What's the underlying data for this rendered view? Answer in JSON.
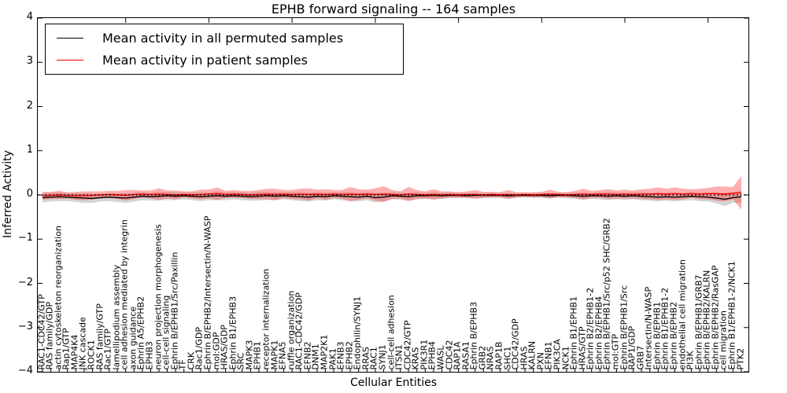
{
  "title": "EPHB forward signaling -- 164 samples",
  "legend": {
    "items": [
      {
        "label": "Mean activity in all permuted samples",
        "color": "#000000"
      },
      {
        "label": "Mean activity in patient samples",
        "color": "#ff0000"
      }
    ]
  },
  "chart_data": {
    "type": "line",
    "title": "EPHB forward signaling -- 164 samples",
    "xlabel": "Cellular Entities",
    "ylabel": "Inferred Activity",
    "ylim": [
      -4,
      4
    ],
    "yticks": [
      "4",
      "3",
      "2",
      "1",
      "0",
      "−1",
      "−2",
      "−3",
      "−4"
    ],
    "grid": false,
    "legend_position": "upper left",
    "zero_line": {
      "style": "dotted",
      "color": "#000000",
      "y": 0
    },
    "top_tick_every": 10,
    "categories": [
      "RAC1-CDC42/GTP",
      "RAS family/GDP",
      "actin cytoskeleton reorganization",
      "Rap1/GTP",
      "MAP4K4",
      "JNK cascade",
      "ROCK1",
      "RAS family/GTP",
      "Rac1/GTP",
      "lamellipodium assembly",
      "cell adhesion mediated by integrin",
      "axon guidance",
      "Ephrin A5/EPHB2",
      "EPHB3",
      "neuron projection morphogenesis",
      "cell-cell signaling",
      "Ephrin B/EPHB1/Src/Paxillin",
      "TF",
      "CRK",
      "Rac1/GDP",
      "Ephrin B/EPHB2/Intersectin/N-WASP",
      "mol:GDP",
      "HRAS/GDP",
      "Ephrin B1/EPHB3",
      "SRC",
      "MAPK3",
      "EPHB1",
      "receptor internalization",
      "MAPK1",
      "EFNA5",
      "ruffle organization",
      "RAC1-CDC42/GDP",
      "EFNB2",
      "DNM1",
      "MAP2K1",
      "PAK1",
      "EFNB3",
      "EPHB2",
      "Endophilin/SYNJ1",
      "RRAS",
      "RAC1",
      "SYNJ1",
      "cell-cell adhesion",
      "ITSN1",
      "CDC42/GTP",
      "KRAS",
      "PIK3R1",
      "EPHB4",
      "WASL",
      "CDC42",
      "RAP1A",
      "RASA1",
      "Ephrin B/EPHB3",
      "GRB2",
      "NRAS",
      "RAP1B",
      "SHC1",
      "CDC42/GDP",
      "HRAS",
      "KALRN",
      "PXN",
      "EFNB1",
      "PIK3CA",
      "NCK1",
      "Ephrin B1/EPHB1",
      "HRAS/GTP",
      "Ephrin B2/EPHB1-2",
      "Ephrin B2/EPHB4",
      "Ephrin B/EPHB1/Src/p52 SHC/GRB2",
      "mol:GTP",
      "Ephrin B/EPHB1/Src",
      "RAP1/GDP",
      "GRB7",
      "Intersectin/N-WASP",
      "Ephrin B/EPHB1",
      "Ephrin B1/EPHB1-2",
      "Ephrin B/EPHB2",
      "endothelial cell migration",
      "PI3K",
      "Ephrin B/EPHB1/GRB7",
      "Ephrin B/EPHB2/KALRN",
      "Ephrin B/EPHB2/RasGAP",
      "cell migration",
      "Ephrin B1/EPHB1-2/NCK1",
      "PTK2"
    ],
    "series": [
      {
        "name": "Mean activity in all permuted samples",
        "color": "#000000",
        "band_color": "rgba(150,150,150,0.40)",
        "values": [
          -0.06,
          -0.05,
          -0.04,
          -0.05,
          -0.06,
          -0.07,
          -0.08,
          -0.06,
          -0.05,
          -0.06,
          -0.07,
          -0.05,
          -0.03,
          -0.04,
          -0.03,
          -0.02,
          -0.03,
          -0.02,
          -0.03,
          -0.04,
          -0.03,
          -0.02,
          -0.03,
          -0.02,
          -0.03,
          -0.04,
          -0.03,
          -0.02,
          -0.03,
          -0.02,
          -0.03,
          -0.04,
          -0.05,
          -0.03,
          -0.04,
          -0.02,
          -0.03,
          -0.04,
          -0.05,
          -0.03,
          -0.06,
          -0.05,
          -0.02,
          -0.03,
          -0.04,
          -0.02,
          -0.02,
          -0.01,
          -0.02,
          -0.01,
          -0.01,
          -0.02,
          -0.01,
          -0.01,
          -0.01,
          -0.01,
          -0.02,
          -0.01,
          -0.01,
          -0.01,
          -0.01,
          -0.02,
          -0.01,
          -0.01,
          -0.02,
          -0.03,
          -0.02,
          -0.02,
          -0.03,
          -0.02,
          -0.03,
          -0.02,
          -0.03,
          -0.04,
          -0.05,
          -0.04,
          -0.05,
          -0.04,
          -0.03,
          -0.04,
          -0.05,
          -0.07,
          -0.1,
          -0.06,
          -0.04
        ],
        "band": [
          0.11,
          0.1,
          0.1,
          0.09,
          0.1,
          0.11,
          0.1,
          0.09,
          0.09,
          0.1,
          0.11,
          0.1,
          0.09,
          0.09,
          0.1,
          0.09,
          0.09,
          0.08,
          0.09,
          0.1,
          0.09,
          0.1,
          0.09,
          0.08,
          0.09,
          0.09,
          0.1,
          0.09,
          0.09,
          0.08,
          0.09,
          0.1,
          0.1,
          0.09,
          0.09,
          0.08,
          0.09,
          0.1,
          0.1,
          0.09,
          0.11,
          0.1,
          0.08,
          0.08,
          0.09,
          0.08,
          0.07,
          0.07,
          0.07,
          0.06,
          0.06,
          0.06,
          0.06,
          0.05,
          0.06,
          0.05,
          0.06,
          0.05,
          0.05,
          0.05,
          0.06,
          0.06,
          0.05,
          0.06,
          0.07,
          0.08,
          0.07,
          0.08,
          0.09,
          0.08,
          0.08,
          0.08,
          0.09,
          0.09,
          0.1,
          0.09,
          0.1,
          0.09,
          0.09,
          0.1,
          0.1,
          0.12,
          0.15,
          0.12,
          0.14
        ]
      },
      {
        "name": "Mean activity in patient samples",
        "color": "#ff0000",
        "band_color": "rgba(255,45,45,0.38)",
        "values": [
          -0.02,
          -0.01,
          0.0,
          -0.01,
          -0.02,
          -0.02,
          -0.01,
          0.0,
          0.01,
          0.0,
          -0.01,
          0.01,
          0.02,
          0.01,
          0.02,
          0.01,
          0.0,
          0.01,
          0.0,
          0.01,
          0.02,
          0.03,
          0.01,
          0.02,
          0.01,
          0.0,
          0.01,
          0.02,
          0.01,
          0.02,
          0.01,
          0.02,
          0.01,
          0.02,
          0.01,
          0.02,
          0.01,
          0.02,
          0.01,
          0.02,
          0.01,
          0.02,
          0.01,
          0.0,
          0.02,
          0.01,
          0.0,
          0.01,
          0.0,
          0.01,
          0.0,
          0.01,
          0.01,
          0.0,
          0.01,
          0.0,
          0.01,
          0.0,
          0.01,
          0.0,
          0.01,
          0.02,
          0.01,
          0.0,
          0.01,
          0.02,
          0.01,
          0.02,
          0.02,
          0.01,
          0.02,
          0.01,
          0.02,
          0.02,
          0.03,
          0.02,
          0.03,
          0.02,
          0.03,
          0.02,
          0.03,
          0.03,
          0.02,
          0.04,
          0.05
        ],
        "band": [
          0.09,
          0.08,
          0.09,
          0.07,
          0.09,
          0.1,
          0.09,
          0.08,
          0.08,
          0.09,
          0.12,
          0.1,
          0.08,
          0.09,
          0.13,
          0.09,
          0.1,
          0.07,
          0.08,
          0.11,
          0.1,
          0.14,
          0.08,
          0.09,
          0.08,
          0.09,
          0.1,
          0.12,
          0.13,
          0.09,
          0.1,
          0.12,
          0.14,
          0.1,
          0.12,
          0.09,
          0.1,
          0.16,
          0.12,
          0.1,
          0.14,
          0.18,
          0.1,
          0.08,
          0.16,
          0.1,
          0.08,
          0.12,
          0.08,
          0.07,
          0.06,
          0.07,
          0.1,
          0.07,
          0.06,
          0.06,
          0.1,
          0.06,
          0.05,
          0.06,
          0.06,
          0.1,
          0.06,
          0.06,
          0.08,
          0.12,
          0.08,
          0.09,
          0.11,
          0.09,
          0.1,
          0.09,
          0.11,
          0.12,
          0.14,
          0.12,
          0.14,
          0.12,
          0.1,
          0.12,
          0.13,
          0.16,
          0.17,
          0.14,
          0.38
        ]
      }
    ]
  }
}
